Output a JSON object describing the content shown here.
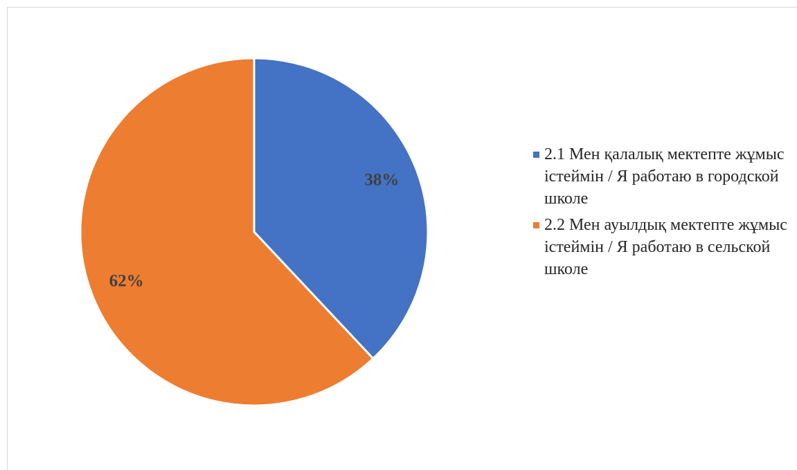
{
  "chart_data": {
    "type": "pie",
    "categories": [
      "2.1 Мен қалалық мектепте жұмыс істеймін / Я работаю в городской школе",
      "2.2 Мен ауылдық мектепте жұмыс істеймін / Я работаю в сельской школе"
    ],
    "values": [
      38,
      62
    ],
    "value_labels": [
      "38%",
      "62%"
    ],
    "colors": [
      "#4472c4",
      "#ed7d31"
    ],
    "legend": "right"
  }
}
